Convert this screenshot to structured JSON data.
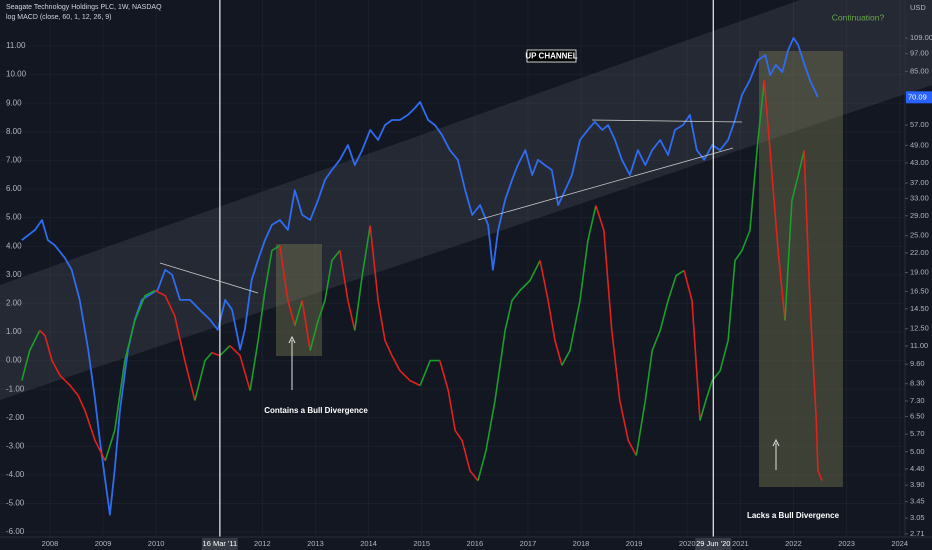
{
  "chart_data": {
    "type": "line",
    "title": "Seagate Technology Holdings PLC, 1W, NASDAQ",
    "subtitle": "log MACD (close, 60, 1, 12, 26, 9)",
    "y2_unit": "USD",
    "annotations": [
      "UP CHANNEL",
      "Continuation?",
      "Contains a Bull Divergence",
      "Lacks a Bull Divergence"
    ],
    "xlim": [
      2007.06,
      2024.1
    ],
    "xticks": [
      2008,
      2009,
      2010,
      2012,
      2013,
      2014,
      2015,
      2016,
      2017,
      2018,
      2019,
      2020,
      2021,
      2022,
      2023,
      2024
    ],
    "markers": [
      {
        "x": 2011.2,
        "label": "16 Mar '11"
      },
      {
        "x": 2020.49,
        "label": "29 Jun '20"
      }
    ],
    "ylim": [
      -6.17,
      12.61
    ],
    "yticks": [
      {
        "value": 11,
        "label": "11.00"
      },
      {
        "value": 10,
        "label": "10.00"
      },
      {
        "value": 9,
        "label": "9.00"
      },
      {
        "value": 8,
        "label": "8.00"
      },
      {
        "value": 7,
        "label": "7.00"
      },
      {
        "value": 6,
        "label": "6.00"
      },
      {
        "value": 5,
        "label": "5.00"
      },
      {
        "value": 4,
        "label": "4.00"
      },
      {
        "value": 3,
        "label": "3.00"
      },
      {
        "value": 2,
        "label": "2.00"
      },
      {
        "value": 1,
        "label": "1.00"
      },
      {
        "value": 0,
        "label": "0.00"
      },
      {
        "value": -1,
        "label": "-1.00"
      },
      {
        "value": -2,
        "label": "-2.00"
      },
      {
        "value": -3,
        "label": "-3.00"
      },
      {
        "value": -4,
        "label": "-4.00"
      },
      {
        "value": -5,
        "label": "-5.00"
      },
      {
        "value": -6,
        "label": "-6.00"
      }
    ],
    "y2lim": [
      2.65,
      144.7
    ],
    "y2log": true,
    "y2ticks": [
      {
        "value": 109,
        "label": "109.00"
      },
      {
        "value": 97,
        "label": "97.00"
      },
      {
        "value": 85,
        "label": "85.00"
      },
      {
        "value": 57,
        "label": "57.00"
      },
      {
        "value": 49,
        "label": "49.00"
      },
      {
        "value": 43,
        "label": "43.00"
      },
      {
        "value": 37,
        "label": "37.00"
      },
      {
        "value": 33,
        "label": "33.00"
      },
      {
        "value": 29,
        "label": "29.00"
      },
      {
        "value": 25,
        "label": "25.00"
      },
      {
        "value": 22,
        "label": "22.00"
      },
      {
        "value": 19,
        "label": "19.00"
      },
      {
        "value": 16.5,
        "label": "16.50"
      },
      {
        "value": 14.5,
        "label": "14.50"
      },
      {
        "value": 12.5,
        "label": "12.50"
      },
      {
        "value": 11,
        "label": "11.00"
      },
      {
        "value": 9.6,
        "label": "9.60"
      },
      {
        "value": 8.3,
        "label": "8.30"
      },
      {
        "value": 7.3,
        "label": "7.30"
      },
      {
        "value": 6.5,
        "label": "6.50"
      },
      {
        "value": 5.7,
        "label": "5.70"
      },
      {
        "value": 5,
        "label": "5.00"
      },
      {
        "value": 4.4,
        "label": "4.40"
      },
      {
        "value": 3.9,
        "label": "3.90"
      },
      {
        "value": 3.45,
        "label": "3.45"
      },
      {
        "value": 3.05,
        "label": "3.05"
      },
      {
        "value": 2.71,
        "label": "2.71"
      }
    ],
    "grid": true,
    "series": [
      {
        "axis": "y2",
        "color": "#2f6cf0",
        "x": [
          2007.47,
          2007.72,
          2007.85,
          2007.96,
          2008.09,
          2008.28,
          2008.41,
          2008.56,
          2008.72,
          2008.85,
          2008.94,
          2009.04,
          2009.13,
          2009.22,
          2009.32,
          2009.47,
          2009.6,
          2009.73,
          2009.88,
          2010.03,
          2010.17,
          2010.3,
          2010.45,
          2010.64,
          2010.82,
          2011.01,
          2011.16,
          2011.3,
          2011.43,
          2011.58,
          2011.67,
          2011.8,
          2011.92,
          2012.05,
          2012.18,
          2012.33,
          2012.48,
          2012.61,
          2012.75,
          2012.9,
          2013.05,
          2013.18,
          2013.31,
          2013.46,
          2013.61,
          2013.74,
          2013.88,
          2014.03,
          2014.18,
          2014.31,
          2014.44,
          2014.59,
          2014.74,
          2014.87,
          2014.97,
          2015.12,
          2015.25,
          2015.38,
          2015.53,
          2015.68,
          2015.82,
          2015.95,
          2016.1,
          2016.25,
          2016.34,
          2016.44,
          2016.57,
          2016.7,
          2016.81,
          2016.95,
          2017.08,
          2017.19,
          2017.32,
          2017.45,
          2017.57,
          2017.7,
          2017.83,
          2017.98,
          2018.13,
          2018.26,
          2018.4,
          2018.51,
          2018.64,
          2018.77,
          2018.92,
          2019.07,
          2019.21,
          2019.34,
          2019.49,
          2019.64,
          2019.77,
          2019.92,
          2020.05,
          2020.18,
          2020.32,
          2020.47,
          2020.62,
          2020.77,
          2020.9,
          2021.03,
          2021.18,
          2021.33,
          2021.47,
          2021.56,
          2021.67,
          2021.79,
          2021.9,
          2022.0,
          2022.09,
          2022.18,
          2022.31,
          2022.46
        ],
        "values": [
          24.2,
          26.1,
          28.1,
          24.2,
          23.3,
          21.2,
          19.4,
          15.5,
          10.7,
          7.36,
          5.46,
          4.05,
          3.13,
          4.37,
          6.83,
          10.7,
          13.4,
          15.5,
          16.1,
          16.7,
          19.4,
          18.7,
          15.5,
          15.5,
          14.4,
          13.4,
          12.4,
          15.5,
          14.4,
          10.7,
          12.4,
          18.0,
          20.9,
          24.2,
          27.1,
          28.1,
          26.1,
          35.1,
          29.2,
          28.1,
          32.6,
          37.9,
          40.8,
          44.0,
          49.1,
          42.3,
          47.3,
          55.0,
          51.0,
          57.0,
          59.2,
          59.2,
          61.5,
          64.7,
          67.7,
          59.2,
          57.0,
          53.0,
          47.3,
          44.0,
          35.1,
          29.2,
          31.4,
          27.1,
          19.4,
          26.1,
          32.6,
          37.9,
          42.3,
          47.3,
          39.3,
          44.0,
          42.3,
          40.8,
          31.4,
          35.1,
          39.3,
          51.0,
          55.0,
          58.4,
          55.0,
          57.0,
          51.0,
          44.0,
          39.3,
          47.3,
          42.3,
          47.3,
          51.0,
          45.6,
          55.0,
          57.0,
          61.5,
          47.3,
          44.0,
          49.1,
          47.3,
          51.0,
          59.2,
          71.3,
          79.7,
          92.5,
          96.0,
          82.7,
          89.2,
          84.6,
          99.7,
          109,
          103.5,
          92.5,
          79.7,
          70.09
        ]
      },
      {
        "rising_color": "#1b9e2a",
        "falling_color": "#e3211c",
        "x": [
          2007.47,
          2007.62,
          2007.81,
          2007.91,
          2008.04,
          2008.19,
          2008.38,
          2008.53,
          2008.66,
          2008.85,
          2009.04,
          2009.22,
          2009.41,
          2009.6,
          2009.79,
          2009.98,
          2010.17,
          2010.35,
          2010.54,
          2010.73,
          2010.92,
          2011.05,
          2011.2,
          2011.39,
          2011.58,
          2011.77,
          2011.92,
          2012.05,
          2012.18,
          2012.33,
          2012.48,
          2012.61,
          2012.75,
          2012.9,
          2013.05,
          2013.18,
          2013.31,
          2013.46,
          2013.61,
          2013.74,
          2013.88,
          2014.03,
          2014.18,
          2014.31,
          2014.44,
          2014.59,
          2014.78,
          2014.97,
          2015.16,
          2015.34,
          2015.5,
          2015.63,
          2015.76,
          2015.91,
          2016.06,
          2016.21,
          2016.38,
          2016.57,
          2016.7,
          2016.85,
          2017.04,
          2017.23,
          2017.38,
          2017.51,
          2017.64,
          2017.79,
          2017.98,
          2018.13,
          2018.28,
          2018.43,
          2018.58,
          2018.73,
          2018.89,
          2019.04,
          2019.21,
          2019.34,
          2019.49,
          2019.64,
          2019.79,
          2019.94,
          2020.09,
          2020.24,
          2020.35,
          2020.47,
          2020.62,
          2020.77,
          2020.9,
          2021.03,
          2021.18,
          2021.33,
          2021.45,
          2021.56,
          2021.71,
          2021.84,
          2021.97,
          2022.09,
          2022.2,
          2022.31,
          2022.43,
          2022.46,
          2022.54
        ],
        "values": [
          -0.7,
          0.35,
          1.05,
          0.87,
          0,
          -0.52,
          -0.87,
          -1.22,
          -1.75,
          -2.8,
          -3.5,
          -2.45,
          0,
          1.4,
          2.27,
          2.45,
          2.27,
          1.57,
          0,
          -1.4,
          0,
          0.28,
          0.17,
          0.52,
          0.17,
          -1.05,
          0.7,
          2.45,
          3.85,
          4.02,
          2.1,
          1.22,
          2.1,
          0.35,
          1.4,
          2.1,
          3.5,
          3.85,
          2.1,
          1.05,
          2.97,
          4.72,
          2.1,
          0.7,
          0.17,
          -0.35,
          -0.7,
          -0.87,
          0,
          0,
          -1.05,
          -2.45,
          -2.8,
          -3.85,
          -4.2,
          -3.15,
          -1.4,
          1.05,
          2.1,
          2.45,
          2.8,
          3.5,
          2.1,
          0.7,
          -0.17,
          0.35,
          2.1,
          4.2,
          5.42,
          4.55,
          1.05,
          -1.4,
          -2.8,
          -3.32,
          -1.4,
          0.35,
          1.05,
          2.1,
          2.97,
          3.15,
          2.1,
          -2.1,
          -1.4,
          -0.7,
          -0.35,
          0.7,
          3.5,
          3.85,
          4.55,
          7.69,
          9.79,
          7.34,
          3.85,
          1.4,
          5.59,
          6.47,
          7.34,
          2.1,
          -2.1,
          -3.85,
          -4.2
        ]
      }
    ]
  }
}
